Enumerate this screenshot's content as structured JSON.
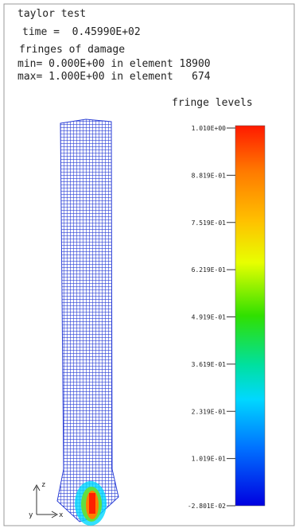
{
  "header": {
    "title": "taylor test",
    "time": "time =  0.45990E+02",
    "fringe_name": "fringes of damage",
    "min": "min= 0.000E+00 in element 18900",
    "max": "max= 1.000E+00 in element   674"
  },
  "legend": {
    "title": "fringe levels",
    "levels": [
      "1.010E+00",
      "8.819E-01",
      "7.519E-01",
      "6.219E-01",
      "4.919E-01",
      "3.619E-01",
      "2.319E-01",
      "1.019E-01",
      "-2.801E-02"
    ]
  },
  "triad": {
    "z": "z",
    "y": "y",
    "x": "x"
  }
}
